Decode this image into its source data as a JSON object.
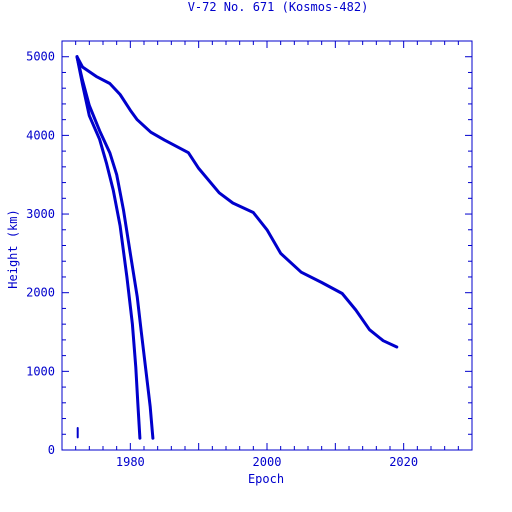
{
  "chart_data": {
    "type": "line",
    "title": "V-72 No. 671 (Kosmos-482)",
    "xlabel": "Epoch",
    "ylabel": "Height (km)",
    "xlim": [
      1970,
      2030
    ],
    "ylim": [
      0,
      5200
    ],
    "x_ticks": [
      1980,
      2000,
      2020
    ],
    "y_ticks": [
      0,
      1000,
      2000,
      3000,
      4000,
      5000
    ],
    "grid": false,
    "color": "#0000cc",
    "series": [
      {
        "x": [
          1972.2,
          1973,
          1975,
          1977,
          1978.5,
          1980,
          1981,
          1983,
          1985,
          1988.5,
          1990,
          1993,
          1995,
          1998,
          2000,
          2002,
          2005,
          2008,
          2011,
          2013,
          2015,
          2017,
          2019
        ],
        "y": [
          5000,
          4870,
          4750,
          4660,
          4520,
          4320,
          4200,
          4040,
          3940,
          3780,
          3580,
          3270,
          3140,
          3020,
          2800,
          2500,
          2260,
          2130,
          1990,
          1780,
          1530,
          1390,
          1310
        ]
      },
      {
        "x": [
          1972.2,
          1973,
          1974,
          1975.5,
          1977,
          1978,
          1979,
          1980,
          1981,
          1981.6,
          1982.3,
          1982.9,
          1983.2,
          1983.3
        ],
        "y": [
          5000,
          4700,
          4380,
          4060,
          3780,
          3500,
          3050,
          2500,
          1950,
          1500,
          1000,
          550,
          250,
          150
        ]
      },
      {
        "x": [
          1972.2,
          1973,
          1974,
          1975.5,
          1976.5,
          1977.5,
          1978.5,
          1979.5,
          1980.3,
          1980.8,
          1981.1,
          1981.3,
          1981.4
        ],
        "y": [
          5000,
          4650,
          4250,
          3950,
          3650,
          3300,
          2850,
          2200,
          1600,
          1050,
          600,
          300,
          150
        ]
      },
      {
        "x": [
          1972.3,
          1972.3
        ],
        "y": [
          160,
          280
        ]
      }
    ]
  }
}
